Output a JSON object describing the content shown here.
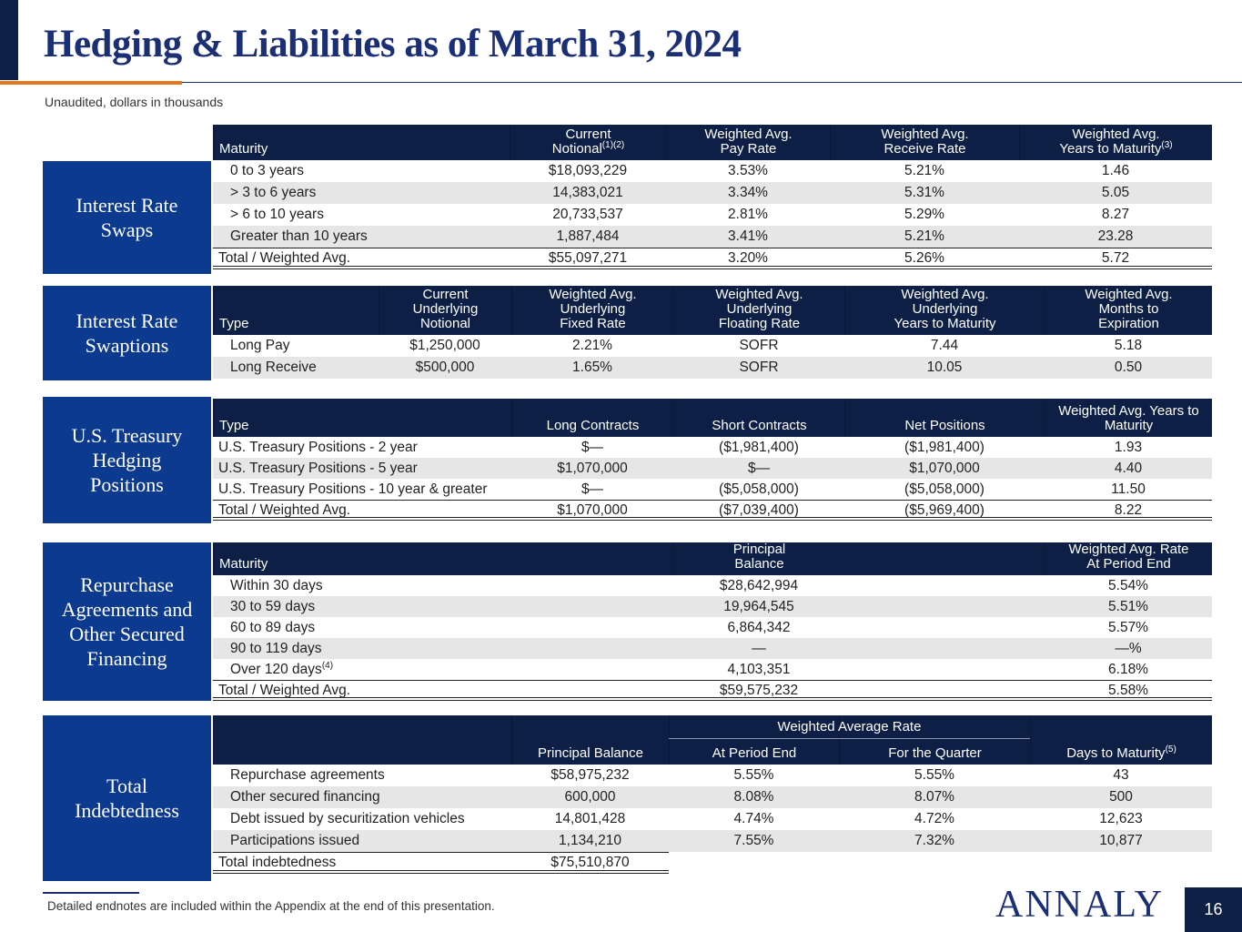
{
  "header": {
    "title": "Hedging & Liabilities as of March 31, 2024",
    "subtitle": "Unaudited, dollars in thousands"
  },
  "sections": [
    {
      "label": "Interest Rate Swaps",
      "headers": [
        "Maturity",
        {
          "text": "Current\nNotional",
          "sup": "(1)(2)"
        },
        "Weighted Avg.\nPay Rate",
        "Weighted Avg.\nReceive Rate",
        {
          "text": "Weighted Avg.\nYears to Maturity",
          "sup": "(3)"
        }
      ],
      "rows": [
        [
          "0 to 3 years",
          "$18,093,229",
          "3.53%",
          "5.21%",
          "1.46"
        ],
        [
          "> 3 to 6 years",
          "14,383,021",
          "3.34%",
          "5.31%",
          "5.05"
        ],
        [
          "> 6 to 10 years",
          "20,733,537",
          "2.81%",
          "5.29%",
          "8.27"
        ],
        [
          "Greater than 10 years",
          "1,887,484",
          "3.41%",
          "5.21%",
          "23.28"
        ]
      ],
      "total": [
        "Total / Weighted Avg.",
        "$55,097,271",
        "3.20%",
        "5.26%",
        "5.72"
      ]
    },
    {
      "label": "Interest Rate Swaptions",
      "headers": [
        "Type",
        "Current\nUnderlying\nNotional",
        "Weighted Avg.\nUnderlying\nFixed Rate",
        "Weighted Avg.\nUnderlying\nFloating Rate",
        "Weighted Avg.\nUnderlying\nYears to Maturity",
        "Weighted Avg.\nMonths to\nExpiration"
      ],
      "rows": [
        [
          "Long Pay",
          "$1,250,000",
          "2.21%",
          "SOFR",
          "7.44",
          "5.18"
        ],
        [
          "Long Receive",
          "$500,000",
          "1.65%",
          "SOFR",
          "10.05",
          "0.50"
        ]
      ]
    },
    {
      "label": "U.S. Treasury Hedging Positions",
      "headers": [
        "Type",
        "Long Contracts",
        "Short Contracts",
        "Net Positions",
        "Weighted Avg. Years to\nMaturity"
      ],
      "rows": [
        [
          "U.S. Treasury Positions - 2 year",
          "$—",
          "($1,981,400)",
          "($1,981,400)",
          "1.93"
        ],
        [
          "U.S. Treasury Positions - 5 year",
          "$1,070,000",
          "$—",
          "$1,070,000",
          "4.40"
        ],
        [
          "U.S. Treasury Positions - 10 year & greater",
          "$—",
          "($5,058,000)",
          "($5,058,000)",
          "11.50"
        ]
      ],
      "total": [
        "Total / Weighted Avg.",
        "$1,070,000",
        "($7,039,400)",
        "($5,969,400)",
        "8.22"
      ]
    },
    {
      "label": "Repurchase Agreements and Other Secured Financing",
      "headers": [
        "Maturity",
        "Principal\nBalance",
        "Weighted Avg. Rate\nAt Period End"
      ],
      "rows": [
        [
          "Within 30 days",
          "$28,642,994",
          "5.54%"
        ],
        [
          "30 to 59 days",
          "19,964,545",
          "5.51%"
        ],
        [
          "60 to 89 days",
          "6,864,342",
          "5.57%"
        ],
        [
          "90 to 119 days",
          "—",
          "—%"
        ],
        [
          {
            "text": "Over 120 days",
            "sup": "(4)"
          },
          "4,103,351",
          "6.18%"
        ]
      ],
      "total": [
        "Total / Weighted Avg.",
        "$59,575,232",
        "5.58%"
      ]
    },
    {
      "label": "Total Indebtedness",
      "group_header": "Weighted Average Rate",
      "headers": [
        "Principal Balance",
        "At Period End",
        "For the Quarter",
        {
          "text": "Days to Maturity",
          "sup": "(5)"
        }
      ],
      "rows": [
        [
          "Repurchase agreements",
          "$58,975,232",
          "5.55%",
          "5.55%",
          "43"
        ],
        [
          "Other secured financing",
          "600,000",
          "8.08%",
          "8.07%",
          "500"
        ],
        [
          "Debt issued by securitization vehicles",
          "14,801,428",
          "4.74%",
          "4.72%",
          "12,623"
        ],
        [
          "Participations issued",
          "1,134,210",
          "7.55%",
          "7.32%",
          "10,877"
        ]
      ],
      "total": [
        "Total indebtedness",
        "$75,510,870"
      ]
    }
  ],
  "footer": {
    "footnote": "Detailed endnotes are included within the Appendix at the end of this presentation.",
    "logo": "ANNALY",
    "page_number": "16"
  }
}
